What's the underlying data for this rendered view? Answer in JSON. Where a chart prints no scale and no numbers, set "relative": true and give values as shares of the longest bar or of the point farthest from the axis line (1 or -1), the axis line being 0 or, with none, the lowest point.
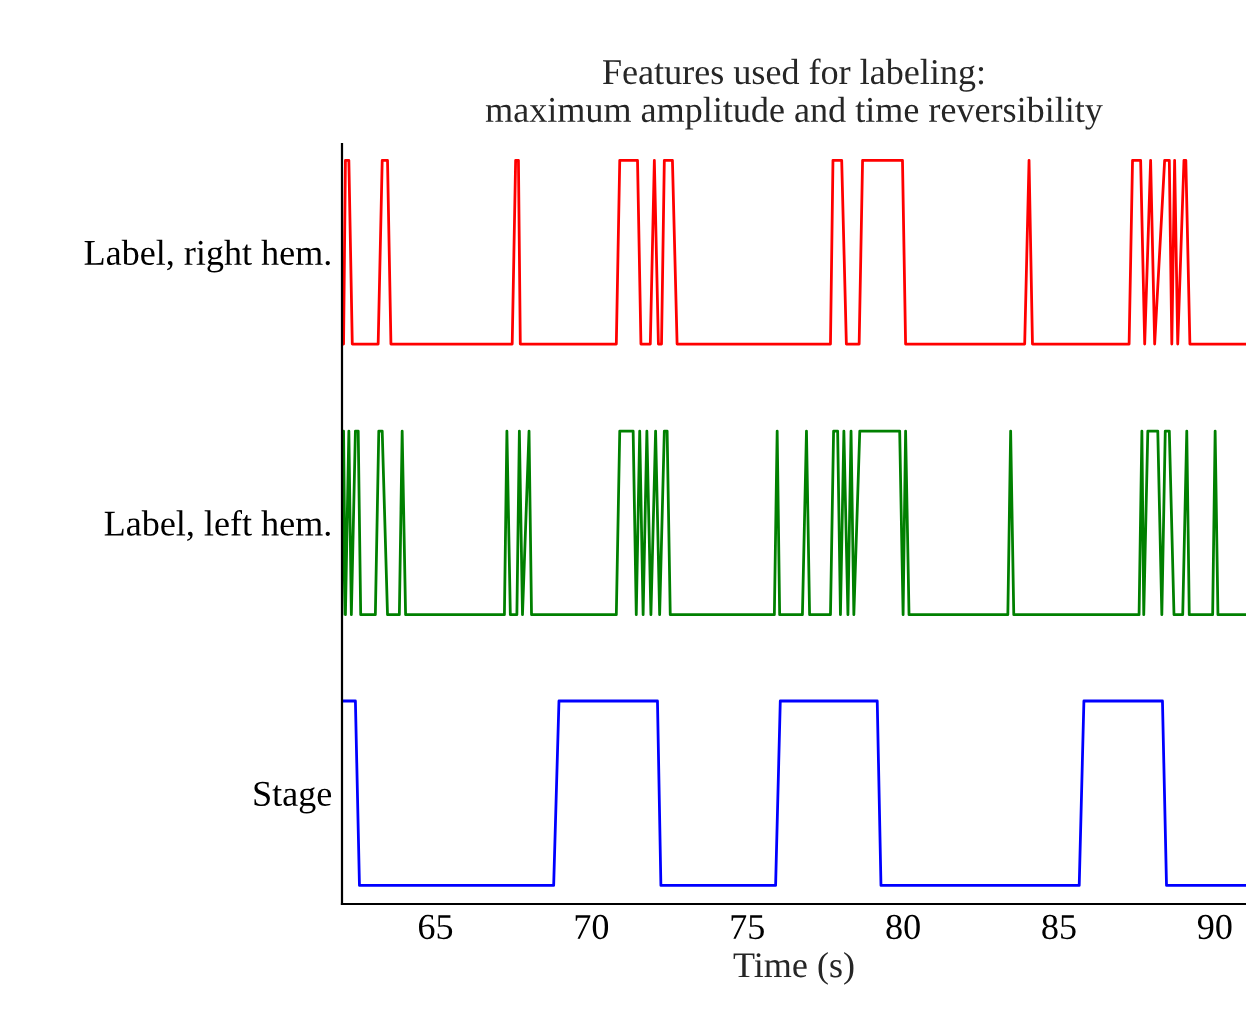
{
  "chart_data": {
    "type": "line",
    "title": "Features used for labeling:\nmaximum amplitude and time reversibility",
    "xlabel": "Time (s)",
    "xlim": [
      62,
      91
    ],
    "xticks": [
      65,
      70,
      75,
      80,
      85,
      90
    ],
    "relative": true,
    "grid": false,
    "legend": false,
    "marker": "none",
    "line_style": "solid",
    "series": [
      {
        "name": "Label, right hem.",
        "color": "#ff0000",
        "x": [
          62.0,
          62.05,
          62.11,
          62.22,
          62.33,
          63.16,
          63.29,
          63.46,
          63.57,
          67.46,
          67.57,
          67.66,
          67.72,
          70.8,
          70.91,
          71.48,
          71.59,
          71.89,
          72.02,
          72.15,
          72.25,
          72.34,
          72.6,
          72.75,
          77.67,
          77.75,
          78.03,
          78.18,
          78.59,
          78.7,
          79.98,
          80.08,
          83.9,
          84.04,
          84.15,
          87.25,
          87.36,
          87.62,
          87.75,
          87.94,
          88.07,
          88.39,
          88.54,
          88.62,
          88.71,
          88.81,
          89.01,
          89.07,
          89.2,
          91.0
        ],
        "values": [
          0.753,
          0.753,
          1,
          1,
          0.753,
          0.753,
          1,
          1,
          0.753,
          0.753,
          1,
          1,
          0.753,
          0.753,
          1,
          1,
          0.753,
          0.753,
          1,
          0.753,
          0.753,
          1,
          1,
          0.753,
          0.753,
          1,
          1,
          0.753,
          0.753,
          1,
          1,
          0.753,
          0.753,
          1,
          0.753,
          0.753,
          1,
          1,
          0.753,
          1,
          0.753,
          1,
          1,
          0.753,
          1,
          0.753,
          1,
          1,
          0.753,
          0.753
        ]
      },
      {
        "name": "Label, left hem.",
        "color": "#008000",
        "x": [
          62.0,
          62.05,
          62.11,
          62.22,
          62.3,
          62.43,
          62.52,
          62.6,
          63.07,
          63.18,
          63.29,
          63.46,
          63.84,
          63.93,
          64.04,
          67.21,
          67.29,
          67.4,
          67.61,
          67.69,
          67.79,
          68.0,
          68.08,
          70.8,
          70.91,
          71.34,
          71.44,
          71.55,
          71.66,
          71.78,
          71.91,
          72.06,
          72.19,
          72.34,
          72.43,
          72.53,
          75.87,
          75.96,
          76.04,
          76.77,
          76.9,
          77.0,
          77.67,
          77.77,
          77.9,
          77.99,
          78.1,
          78.23,
          78.33,
          78.42,
          78.61,
          79.89,
          80.0,
          80.08,
          80.19,
          83.36,
          83.45,
          83.55,
          87.57,
          87.66,
          87.72,
          87.85,
          88.17,
          88.3,
          88.41,
          88.54,
          88.69,
          88.97,
          89.1,
          89.18,
          89.93,
          90.01,
          90.1,
          91.0
        ],
        "values": [
          0.389,
          0.636,
          0.389,
          0.636,
          0.389,
          0.636,
          0.636,
          0.389,
          0.389,
          0.636,
          0.636,
          0.389,
          0.389,
          0.636,
          0.389,
          0.389,
          0.636,
          0.389,
          0.389,
          0.636,
          0.389,
          0.636,
          0.389,
          0.389,
          0.636,
          0.636,
          0.389,
          0.636,
          0.389,
          0.636,
          0.389,
          0.636,
          0.389,
          0.636,
          0.636,
          0.389,
          0.389,
          0.636,
          0.389,
          0.389,
          0.636,
          0.389,
          0.389,
          0.636,
          0.636,
          0.389,
          0.636,
          0.389,
          0.636,
          0.389,
          0.636,
          0.636,
          0.389,
          0.636,
          0.389,
          0.389,
          0.636,
          0.389,
          0.389,
          0.636,
          0.389,
          0.636,
          0.636,
          0.389,
          0.636,
          0.636,
          0.389,
          0.389,
          0.636,
          0.389,
          0.389,
          0.636,
          0.389,
          0.389
        ]
      },
      {
        "name": "Stage",
        "color": "#0000ff",
        "x": [
          62.0,
          62.43,
          62.56,
          68.79,
          68.96,
          72.12,
          72.23,
          75.91,
          76.06,
          79.17,
          79.29,
          85.65,
          85.8,
          88.32,
          88.45,
          91.0
        ],
        "values": [
          0.273,
          0.273,
          0.025,
          0.025,
          0.273,
          0.273,
          0.025,
          0.025,
          0.273,
          0.273,
          0.025,
          0.025,
          0.273,
          0.273,
          0.025,
          0.025
        ]
      }
    ]
  }
}
